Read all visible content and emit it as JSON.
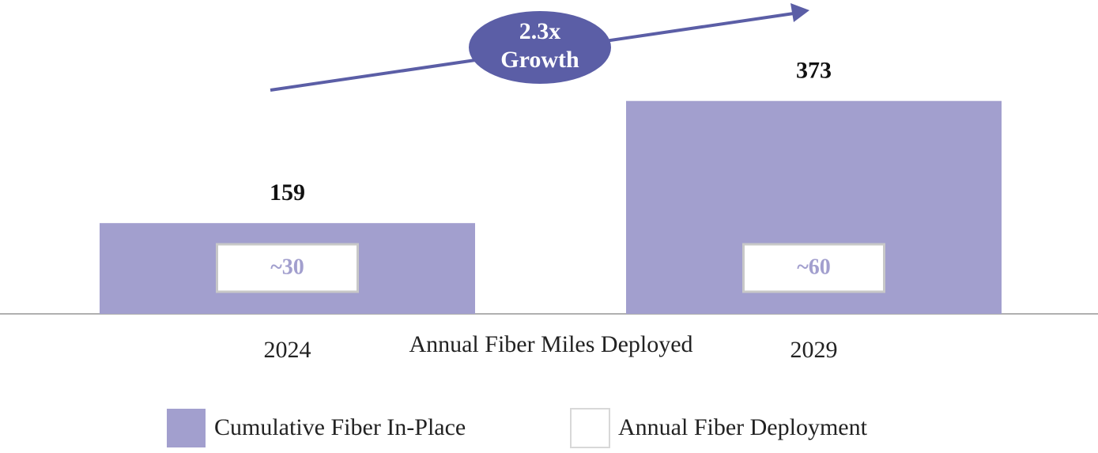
{
  "chart_data": {
    "type": "bar",
    "xlabel": "Annual Fiber Miles Deployed",
    "annotation": [
      "2.3x",
      "Growth"
    ],
    "annotation_color": "#5b5ea6",
    "categories": [
      "2024",
      "2029"
    ],
    "series": [
      {
        "name": "Cumulative Fiber In-Place",
        "color": "#a29fce",
        "values": [
          159,
          373
        ]
      },
      {
        "name": "Annual Fiber Deployment",
        "color": "#ffffff",
        "values": [
          30,
          60
        ],
        "value_labels": [
          "~30",
          "~60"
        ]
      }
    ]
  }
}
